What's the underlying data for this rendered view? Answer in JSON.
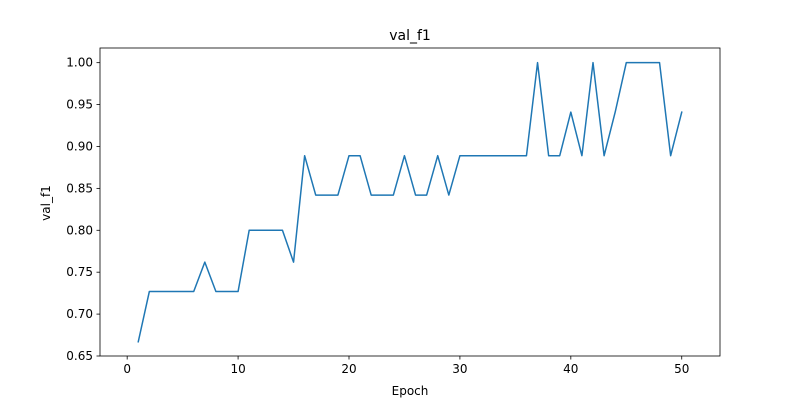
{
  "chart_data": {
    "type": "line",
    "title": "val_f1",
    "xlabel": "Epoch",
    "ylabel": "val_f1",
    "xlim": [
      -2.45,
      53.45
    ],
    "ylim": [
      0.65,
      1.0175
    ],
    "xticks": [
      0,
      10,
      20,
      30,
      40,
      50
    ],
    "yticks": [
      0.65,
      0.7,
      0.75,
      0.8,
      0.85,
      0.9,
      0.95,
      1.0
    ],
    "ytick_labels": [
      "0.65",
      "0.70",
      "0.75",
      "0.80",
      "0.85",
      "0.90",
      "0.95",
      "1.00"
    ],
    "grid": false,
    "series": [
      {
        "color": "#1f77b4",
        "x": [
          1,
          2,
          3,
          4,
          5,
          6,
          7,
          8,
          9,
          10,
          11,
          12,
          13,
          14,
          15,
          16,
          17,
          18,
          19,
          20,
          21,
          22,
          23,
          24,
          25,
          26,
          27,
          28,
          29,
          30,
          31,
          32,
          33,
          34,
          35,
          36,
          37,
          38,
          39,
          40,
          41,
          42,
          43,
          44,
          45,
          46,
          47,
          48,
          49,
          50
        ],
        "y": [
          0.667,
          0.727,
          0.727,
          0.727,
          0.727,
          0.727,
          0.762,
          0.727,
          0.727,
          0.727,
          0.8,
          0.8,
          0.8,
          0.8,
          0.762,
          0.889,
          0.842,
          0.842,
          0.842,
          0.889,
          0.889,
          0.842,
          0.842,
          0.842,
          0.889,
          0.842,
          0.842,
          0.889,
          0.842,
          0.889,
          0.889,
          0.889,
          0.889,
          0.889,
          0.889,
          0.889,
          1.0,
          0.889,
          0.889,
          0.941,
          0.889,
          1.0,
          0.889,
          0.941,
          1.0,
          1.0,
          1.0,
          1.0,
          0.889,
          0.941
        ]
      }
    ]
  }
}
